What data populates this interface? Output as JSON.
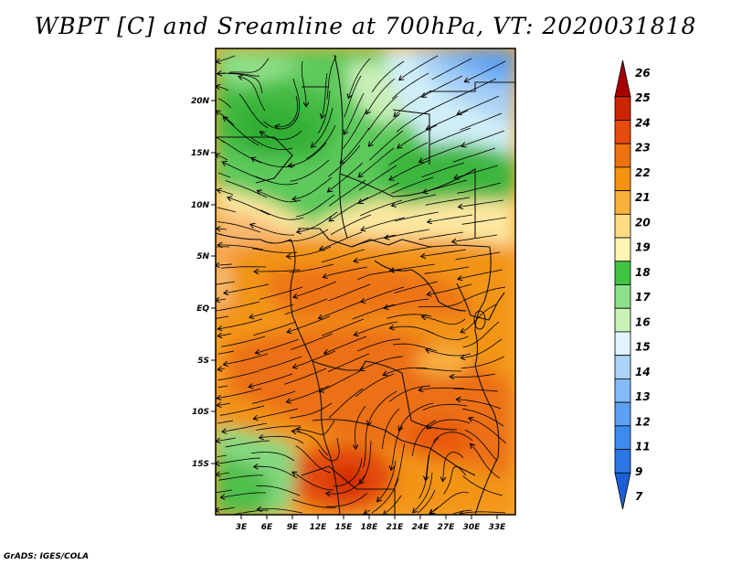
{
  "title": "WBPT [C] and Sreamline at 700hPa, VT: 2020031818",
  "footer": "GrADS: IGES/COLA",
  "lat_labels": [
    "20N",
    "15N",
    "10N",
    "5N",
    "EQ",
    "5S",
    "10S",
    "15S"
  ],
  "lon_labels": [
    "3E",
    "6E",
    "9E",
    "12E",
    "15E",
    "18E",
    "21E",
    "24E",
    "27E",
    "30E",
    "33E"
  ],
  "colorbar": {
    "labels": [
      "7",
      "9",
      "11",
      "12",
      "13",
      "14",
      "15",
      "16",
      "17",
      "18",
      "19",
      "20",
      "21",
      "22",
      "23",
      "24",
      "25",
      "26"
    ],
    "colors": [
      "#1a5fd6",
      "#2a76e3",
      "#3d8bec",
      "#5ea1f2",
      "#84bbf6",
      "#aed3f8",
      "#e0f5ff",
      "#c8f2b8",
      "#8ee08a",
      "#42c242",
      "#fff5b3",
      "#ffdc84",
      "#f8b13c",
      "#f39310",
      "#ee7212",
      "#e64a0c",
      "#cc2504",
      "#a70000"
    ]
  },
  "map": {
    "variable": "WBPT [C]",
    "level": "700hPa",
    "valid_time": "2020031818",
    "lat_range": [
      "18S",
      "24N"
    ],
    "lon_range": [
      "0E",
      "35E"
    ]
  }
}
